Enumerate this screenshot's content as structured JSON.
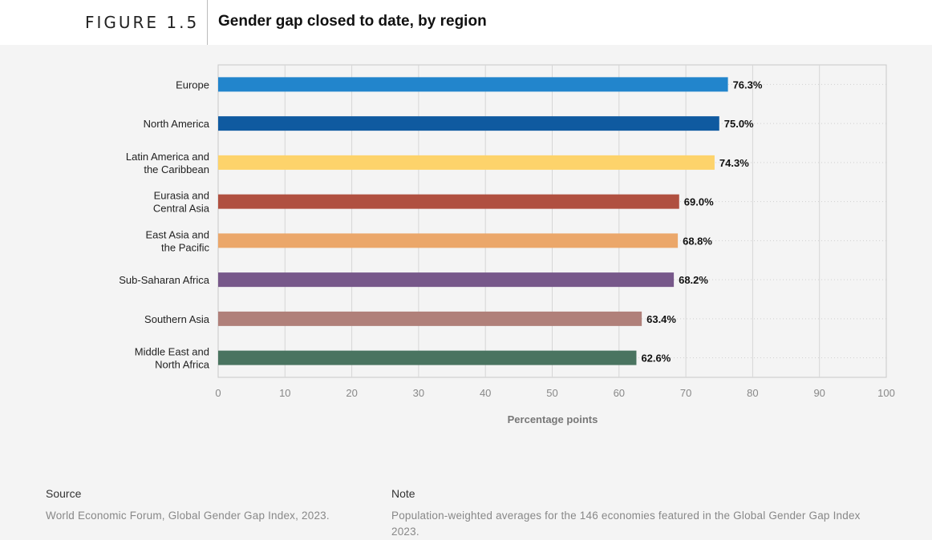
{
  "header": {
    "figure_label": "FIGURE 1.5",
    "title": "Gender gap closed to date, by region"
  },
  "chart_data": {
    "type": "bar",
    "orientation": "horizontal",
    "title": "Gender gap closed to date, by region",
    "categories": [
      [
        "Europe"
      ],
      [
        "North America"
      ],
      [
        "Latin America and",
        "the Caribbean"
      ],
      [
        "Eurasia and",
        "Central Asia"
      ],
      [
        "East Asia and",
        "the Pacific"
      ],
      [
        "Sub-Saharan Africa"
      ],
      [
        "Southern Asia"
      ],
      [
        "Middle East and",
        "North Africa"
      ]
    ],
    "values": [
      76.3,
      75.0,
      74.3,
      69.0,
      68.8,
      68.2,
      63.4,
      62.6
    ],
    "value_labels": [
      "76.3%",
      "75.0%",
      "74.3%",
      "69.0%",
      "68.8%",
      "68.2%",
      "63.4%",
      "62.6%"
    ],
    "colors": [
      "#2285cc",
      "#0f5aa0",
      "#fdd36b",
      "#b05040",
      "#eba76a",
      "#77588a",
      "#b0807a",
      "#4a7460"
    ],
    "xlabel": "Percentage points",
    "xlim": [
      0,
      100
    ],
    "xticks": [
      "0",
      "10",
      "20",
      "30",
      "40",
      "50",
      "60",
      "70",
      "80",
      "90",
      "100"
    ],
    "grid": true,
    "legend": "none"
  },
  "footer": {
    "source_heading": "Source",
    "source_text": "World Economic Forum, Global Gender Gap Index, 2023.",
    "note_heading": "Note",
    "note_text": "Population-weighted averages for the 146 economies featured in the Global Gender Gap Index 2023."
  }
}
